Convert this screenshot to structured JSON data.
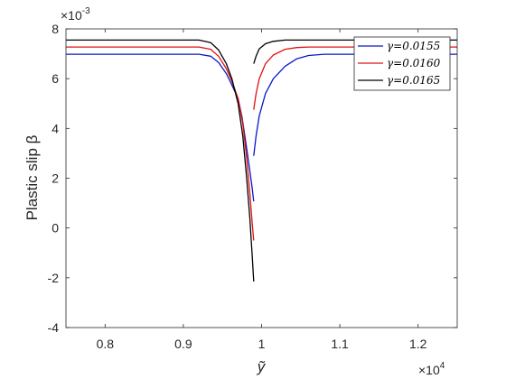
{
  "chart_data": {
    "type": "line",
    "title": "",
    "xlabel": "ỹ",
    "ylabel": "Plastic slip β",
    "x_exponent_label": "×10",
    "x_exponent_power": "4",
    "y_exponent_label": "×10",
    "y_exponent_power": "-3",
    "xlim": [
      7500,
      12500
    ],
    "ylim": [
      -0.004,
      0.008
    ],
    "x_ticks": [
      8000,
      9000,
      10000,
      11000,
      12000
    ],
    "x_tick_labels": [
      "0.8",
      "0.9",
      "1",
      "1.1",
      "1.2"
    ],
    "y_ticks": [
      -0.004,
      -0.002,
      0,
      0.002,
      0.004,
      0.006,
      0.008
    ],
    "y_tick_labels": [
      "-4",
      "-2",
      "0",
      "2",
      "4",
      "6",
      "8"
    ],
    "grid": false,
    "legend_position": "top-right",
    "series": [
      {
        "name": "γ=0.0155",
        "color": "#0a18c8",
        "left": [
          [
            7500,
            0.00698
          ],
          [
            8500,
            0.00698
          ],
          [
            9200,
            0.00698
          ],
          [
            9350,
            0.0069
          ],
          [
            9450,
            0.00665
          ],
          [
            9550,
            0.0062
          ],
          [
            9620,
            0.00575
          ],
          [
            9700,
            0.0052
          ],
          [
            9750,
            0.00445
          ],
          [
            9800,
            0.0034
          ],
          [
            9850,
            0.0023
          ],
          [
            9880,
            0.0016
          ],
          [
            9900,
            0.00107
          ]
        ],
        "right": [
          [
            9900,
            0.0029
          ],
          [
            9930,
            0.0037
          ],
          [
            9970,
            0.0045
          ],
          [
            10050,
            0.0054
          ],
          [
            10150,
            0.006
          ],
          [
            10300,
            0.0065
          ],
          [
            10450,
            0.0068
          ],
          [
            10600,
            0.00693
          ],
          [
            10800,
            0.00698
          ],
          [
            12500,
            0.00698
          ]
        ]
      },
      {
        "name": "γ=0.0160",
        "color": "#e01010",
        "left": [
          [
            7500,
            0.00727
          ],
          [
            8500,
            0.00727
          ],
          [
            9200,
            0.00727
          ],
          [
            9350,
            0.00718
          ],
          [
            9450,
            0.0069
          ],
          [
            9550,
            0.0064
          ],
          [
            9620,
            0.0059
          ],
          [
            9700,
            0.0052
          ],
          [
            9760,
            0.0042
          ],
          [
            9810,
            0.0028
          ],
          [
            9850,
            0.0014
          ],
          [
            9880,
            0.0002
          ],
          [
            9900,
            -0.0005
          ]
        ],
        "right": [
          [
            9900,
            0.00475
          ],
          [
            9930,
            0.0054
          ],
          [
            9970,
            0.006
          ],
          [
            10050,
            0.0066
          ],
          [
            10150,
            0.00695
          ],
          [
            10300,
            0.00718
          ],
          [
            10450,
            0.00725
          ],
          [
            10600,
            0.00727
          ],
          [
            12500,
            0.00727
          ]
        ]
      },
      {
        "name": "γ=0.0165",
        "color": "#000000",
        "left": [
          [
            7500,
            0.00755
          ],
          [
            8500,
            0.00755
          ],
          [
            9200,
            0.00755
          ],
          [
            9350,
            0.00745
          ],
          [
            9450,
            0.00715
          ],
          [
            9550,
            0.0066
          ],
          [
            9620,
            0.006
          ],
          [
            9700,
            0.005
          ],
          [
            9760,
            0.0037
          ],
          [
            9810,
            0.002
          ],
          [
            9850,
            0.0004
          ],
          [
            9880,
            -0.0011
          ],
          [
            9900,
            -0.00215
          ]
        ],
        "right": [
          [
            9900,
            0.0066
          ],
          [
            9930,
            0.0069
          ],
          [
            9970,
            0.0072
          ],
          [
            10050,
            0.0074
          ],
          [
            10150,
            0.0075
          ],
          [
            10300,
            0.00755
          ],
          [
            12500,
            0.00755
          ]
        ]
      }
    ]
  }
}
